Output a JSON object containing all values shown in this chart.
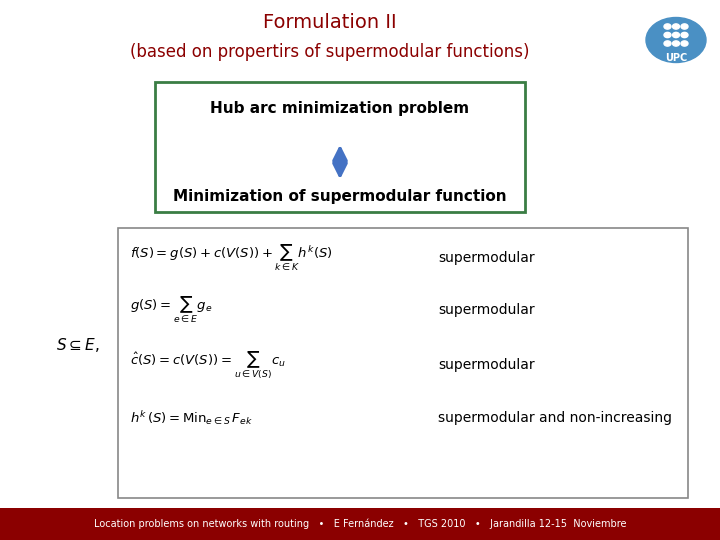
{
  "title": "Formulation II",
  "subtitle": "(based on propertirs of supermodular functions)",
  "title_color": "#8B0000",
  "subtitle_color": "#8B0000",
  "bg_color": "#FFFFFF",
  "box1_text": "Hub arc minimization problem",
  "box2_text": "Minimization of supermodular function",
  "box_border_color": "#3A7D44",
  "arrow_color": "#4472C4",
  "left_label": "$S\\subseteq E,$",
  "formula_labels": [
    "supermodular",
    "supermodular",
    "supermodular",
    "supermodular and non-increasing"
  ],
  "inner_box_border": "#888888",
  "footer_bg": "#8B0000",
  "footer_text": "Location problems on networks with routing   •   E Fernández   •   TGS 2010   •   Jarandilla 12-15  Noviembre",
  "footer_color": "#FFFFFF",
  "upc_color": "#4A90C4"
}
